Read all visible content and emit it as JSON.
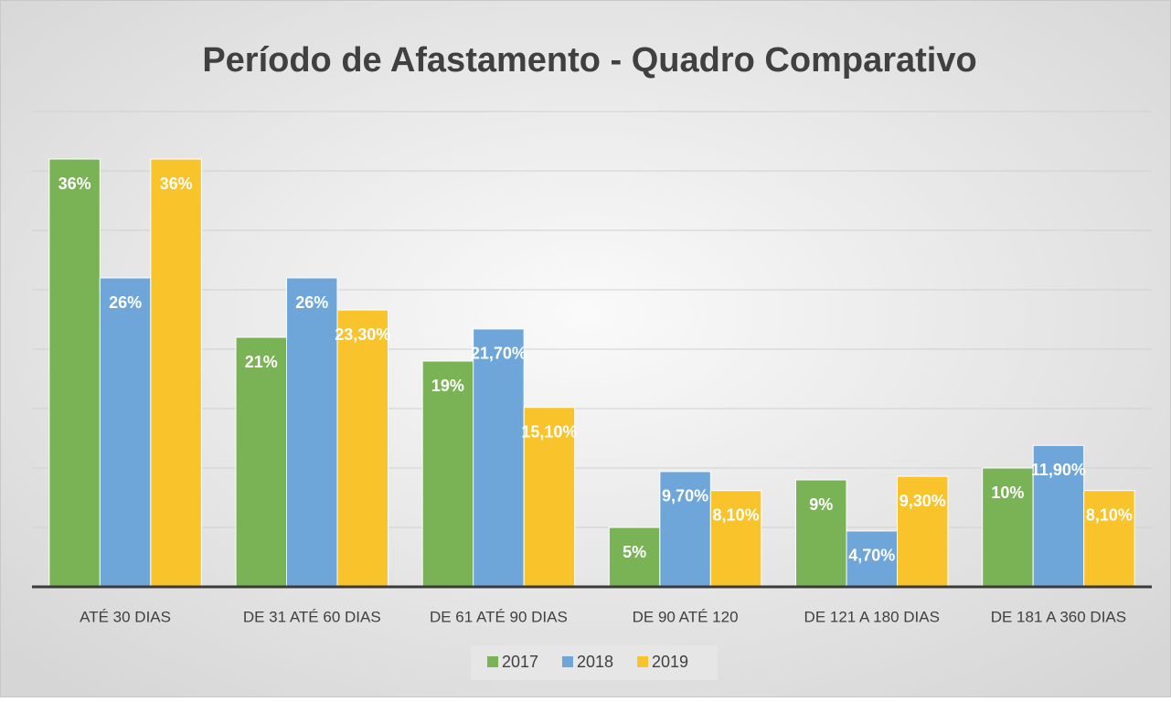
{
  "chart_data": {
    "type": "bar",
    "title": "Período de Afastamento - Quadro Comparativo",
    "categories": [
      "ATÉ 30 DIAS",
      "DE 31 ATÉ 60 DIAS",
      "DE 61 ATÉ 90 DIAS",
      "DE 90 ATÉ 120",
      "DE 121 A 180 DIAS",
      "DE 181 A 360 DIAS"
    ],
    "series": [
      {
        "name": "2017",
        "color": "#7ab356",
        "values": [
          36,
          21,
          19,
          5,
          9,
          10
        ],
        "value_labels": [
          "36%",
          "21%",
          "19%",
          "5%",
          "9%",
          "10%"
        ]
      },
      {
        "name": "2018",
        "color": "#6ea6da",
        "values": [
          26,
          26,
          21.7,
          9.7,
          4.7,
          11.9
        ],
        "value_labels": [
          "26%",
          "26%",
          "21,70%",
          "9,70%",
          "4,70%",
          "11,90%"
        ]
      },
      {
        "name": "2019",
        "color": "#f9c32c",
        "values": [
          36,
          23.3,
          15.1,
          8.1,
          9.3,
          8.1
        ],
        "value_labels": [
          "36%",
          "23,30%",
          "15,10%",
          "8,10%",
          "9,30%",
          "8,10%"
        ]
      }
    ],
    "ylim": [
      0,
      40
    ],
    "yticks": [
      0,
      5,
      10,
      15,
      20,
      25,
      30,
      35,
      40
    ],
    "grid": true,
    "legend": "bottom"
  }
}
